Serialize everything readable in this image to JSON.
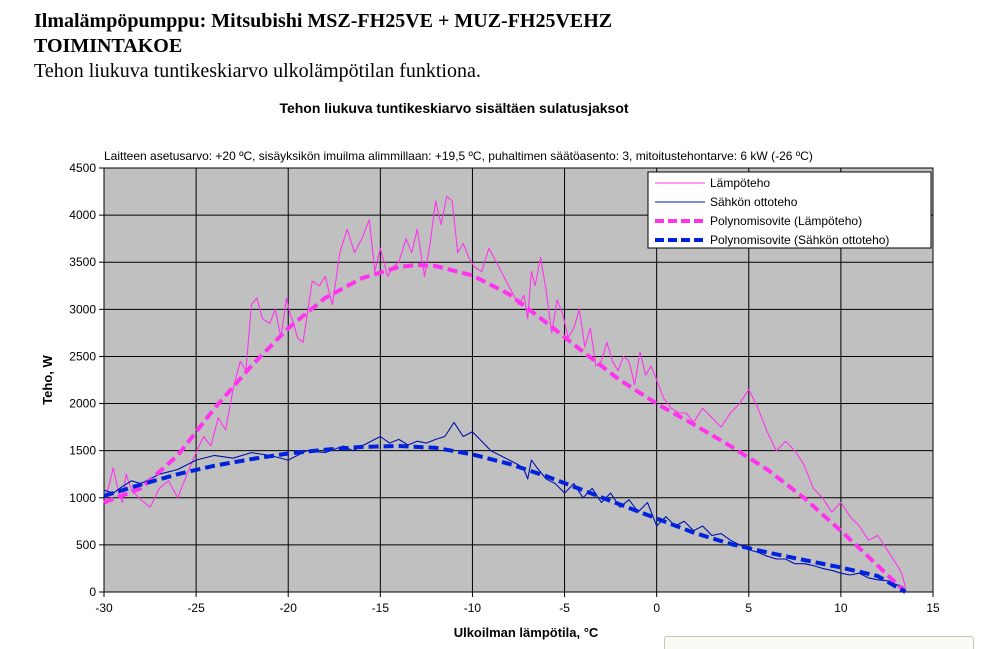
{
  "document": {
    "title": "Ilmalämpöpumppu: Mitsubishi MSZ-FH25VE + MUZ-FH25VEHZ",
    "subtitle": "TOIMINTAKOE",
    "description": "Tehon liukuva tuntikeskiarvo ulkolämpötilan funktiona."
  },
  "chart_data": {
    "type": "line",
    "title": "Tehon liukuva tuntikeskiarvo sisältäen sulatusjaksot",
    "subtitle": "Laitteen asetusarvo: +20 ºC, sisäyksikön imuilma alimmillaan: +19,5 ºC, puhaltimen säätöasento: 3, mitoitustehontarve: 6 kW (-26 ºC)",
    "xlabel": "Ulkoilman lämpötila, °C",
    "ylabel": "Teho, W",
    "xlim": [
      -30,
      15
    ],
    "ylim": [
      0,
      4500
    ],
    "xticks": [
      -30,
      -25,
      -20,
      -15,
      -10,
      -5,
      0,
      5,
      10,
      15
    ],
    "yticks": [
      0,
      500,
      1000,
      1500,
      2000,
      2500,
      3000,
      3500,
      4000,
      4500
    ],
    "grid": true,
    "legend_position": "top-right",
    "series": [
      {
        "name": "Lämpöteho",
        "color": "#ff33ee",
        "style": "solid",
        "x": [
          -30,
          -29.7,
          -29.5,
          -29.2,
          -29.0,
          -28.8,
          -28.5,
          -28.0,
          -27.5,
          -27.0,
          -26.5,
          -26.0,
          -25.5,
          -25.0,
          -24.6,
          -24.2,
          -23.8,
          -23.4,
          -23.0,
          -22.6,
          -22.3,
          -22.0,
          -21.7,
          -21.4,
          -21.0,
          -20.7,
          -20.4,
          -20.1,
          -19.9,
          -19.7,
          -19.5,
          -19.2,
          -19.0,
          -18.7,
          -18.3,
          -18.0,
          -17.6,
          -17.2,
          -16.8,
          -16.4,
          -16.0,
          -15.6,
          -15.3,
          -15.0,
          -14.6,
          -14.3,
          -14.0,
          -13.6,
          -13.3,
          -13.0,
          -12.6,
          -12.3,
          -12.0,
          -11.7,
          -11.4,
          -11.1,
          -10.8,
          -10.5,
          -10.2,
          -9.9,
          -9.5,
          -9.1,
          -8.7,
          -8.3,
          -7.9,
          -7.5,
          -7.2,
          -7.0,
          -6.8,
          -6.6,
          -6.3,
          -6.0,
          -5.7,
          -5.4,
          -5.1,
          -4.8,
          -4.5,
          -4.2,
          -3.9,
          -3.6,
          -3.3,
          -3.0,
          -2.7,
          -2.4,
          -2.1,
          -1.8,
          -1.5,
          -1.2,
          -0.9,
          -0.6,
          -0.3,
          0.0,
          0.4,
          0.8,
          1.2,
          1.6,
          2.0,
          2.5,
          3.0,
          3.5,
          4.0,
          4.5,
          5.0,
          5.5,
          6.0,
          6.5,
          7.0,
          7.5,
          8.0,
          8.5,
          9.0,
          9.5,
          10.0,
          10.5,
          11.0,
          11.5,
          12.0,
          12.5,
          13.0,
          13.3,
          13.5
        ],
        "y": [
          950,
          1150,
          1320,
          1050,
          950,
          1250,
          1080,
          980,
          900,
          1100,
          1180,
          1000,
          1250,
          1480,
          1650,
          1550,
          1850,
          1720,
          2150,
          2450,
          2350,
          3050,
          3120,
          2900,
          2850,
          3000,
          2700,
          3120,
          2950,
          2850,
          2700,
          2650,
          2900,
          3300,
          3250,
          3350,
          3050,
          3600,
          3850,
          3600,
          3750,
          3950,
          3400,
          3650,
          3350,
          3450,
          3500,
          3750,
          3600,
          3850,
          3350,
          3700,
          4150,
          3900,
          4200,
          4150,
          3600,
          3700,
          3550,
          3450,
          3400,
          3650,
          3500,
          3350,
          3200,
          3050,
          3150,
          2900,
          3400,
          3250,
          3550,
          3200,
          2750,
          3100,
          2950,
          2700,
          2800,
          3000,
          2600,
          2800,
          2400,
          2450,
          2650,
          2450,
          2350,
          2500,
          2450,
          2200,
          2550,
          2300,
          2400,
          2250,
          2050,
          1950,
          1900,
          1900,
          1800,
          1950,
          1850,
          1750,
          1900,
          2000,
          2150,
          1950,
          1700,
          1500,
          1600,
          1500,
          1350,
          1100,
          1000,
          850,
          950,
          800,
          700,
          550,
          600,
          450,
          300,
          200,
          50
        ]
      },
      {
        "name": "Sähkön ottoteho",
        "color": "#0011aa",
        "style": "solid",
        "x": [
          -30,
          -29.5,
          -29.0,
          -28.5,
          -28.0,
          -27.0,
          -26.0,
          -25.0,
          -24.0,
          -23.0,
          -22.0,
          -21.0,
          -20.0,
          -19.0,
          -18.0,
          -17.0,
          -16.5,
          -16.0,
          -15.5,
          -15.0,
          -14.5,
          -14.0,
          -13.5,
          -13.0,
          -12.5,
          -12.0,
          -11.5,
          -11.0,
          -10.5,
          -10.0,
          -9.5,
          -9.0,
          -8.5,
          -8.0,
          -7.5,
          -7.2,
          -7.0,
          -6.8,
          -6.5,
          -6.0,
          -5.5,
          -5.0,
          -4.5,
          -4.0,
          -3.5,
          -3.0,
          -2.5,
          -2.0,
          -1.5,
          -1.0,
          -0.5,
          0.0,
          0.5,
          1.0,
          1.5,
          2.0,
          2.5,
          3.0,
          3.5,
          4.0,
          4.5,
          5.0,
          5.5,
          6.0,
          6.5,
          7.0,
          7.5,
          8.0,
          8.5,
          9.0,
          9.5,
          10.0,
          10.5,
          11.0,
          11.5,
          12.0,
          12.5,
          13.0,
          13.3,
          13.5
        ],
        "y": [
          1080,
          1050,
          1120,
          1180,
          1150,
          1250,
          1300,
          1400,
          1450,
          1420,
          1480,
          1450,
          1400,
          1500,
          1480,
          1550,
          1500,
          1550,
          1600,
          1650,
          1580,
          1620,
          1560,
          1600,
          1580,
          1620,
          1650,
          1800,
          1650,
          1700,
          1600,
          1500,
          1450,
          1400,
          1350,
          1300,
          1200,
          1400,
          1320,
          1200,
          1150,
          1050,
          1150,
          1000,
          1100,
          950,
          1050,
          900,
          980,
          850,
          950,
          700,
          800,
          700,
          750,
          650,
          700,
          600,
          620,
          550,
          500,
          450,
          420,
          380,
          350,
          350,
          300,
          300,
          280,
          250,
          230,
          200,
          180,
          200,
          150,
          130,
          120,
          80,
          60,
          30
        ]
      },
      {
        "name": "Polynomisovite (Lämpöteho)",
        "color": "#ff33ee",
        "style": "dashed",
        "x": [
          -30,
          -28,
          -26,
          -24,
          -22,
          -20,
          -18,
          -16,
          -14,
          -13,
          -12,
          -10,
          -8,
          -6,
          -4,
          -2,
          0,
          2,
          4,
          6,
          8,
          10,
          12,
          13.5
        ],
        "y": [
          950,
          1100,
          1450,
          1950,
          2400,
          2800,
          3120,
          3330,
          3450,
          3470,
          3460,
          3360,
          3160,
          2860,
          2550,
          2250,
          2000,
          1780,
          1550,
          1300,
          1000,
          650,
          280,
          0
        ]
      },
      {
        "name": "Polynomisovite (Sähkön ottoteho)",
        "color": "#0022dd",
        "style": "dashed",
        "x": [
          -30,
          -28,
          -26,
          -24,
          -22,
          -20,
          -18,
          -16,
          -14,
          -12,
          -10,
          -8,
          -6,
          -4,
          -2,
          0,
          2,
          4,
          6,
          8,
          10,
          12,
          13.5
        ],
        "y": [
          1020,
          1140,
          1250,
          1340,
          1410,
          1470,
          1510,
          1540,
          1550,
          1530,
          1460,
          1360,
          1230,
          1080,
          930,
          780,
          630,
          510,
          420,
          340,
          260,
          170,
          0
        ]
      }
    ]
  }
}
